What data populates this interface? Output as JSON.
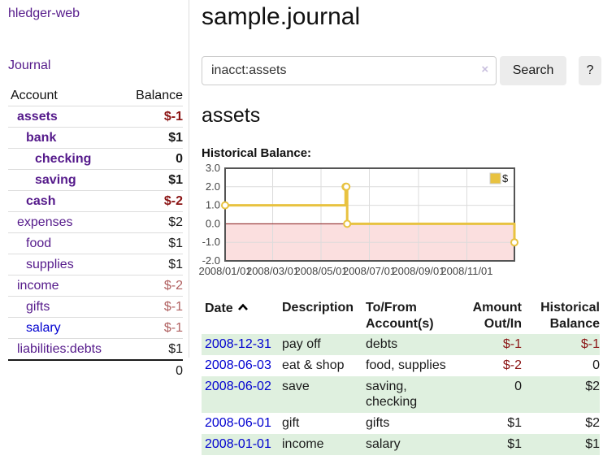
{
  "sidebar": {
    "brand": "hledger-web",
    "nav_journal": "Journal",
    "accounts": {
      "header_account": "Account",
      "header_balance": "Balance",
      "rows": [
        {
          "name": "assets",
          "balance": "$-1",
          "depth": 1,
          "bold": true,
          "neg": true,
          "blue": false
        },
        {
          "name": "bank",
          "balance": "$1",
          "depth": 2,
          "bold": true,
          "neg": false,
          "blue": false
        },
        {
          "name": "checking",
          "balance": "0",
          "depth": 3,
          "bold": true,
          "neg": false,
          "blue": false
        },
        {
          "name": "saving",
          "balance": "$1",
          "depth": 3,
          "bold": true,
          "neg": false,
          "blue": false
        },
        {
          "name": "cash",
          "balance": "$-2",
          "depth": 2,
          "bold": true,
          "neg": true,
          "blue": false
        },
        {
          "name": "expenses",
          "balance": "$2",
          "depth": 1,
          "bold": false,
          "neg": false,
          "blue": false
        },
        {
          "name": "food",
          "balance": "$1",
          "depth": 2,
          "bold": false,
          "neg": false,
          "blue": false
        },
        {
          "name": "supplies",
          "balance": "$1",
          "depth": 2,
          "bold": false,
          "neg": false,
          "blue": false
        },
        {
          "name": "income",
          "balance": "$-2",
          "depth": 1,
          "bold": false,
          "neg": true,
          "blue": false
        },
        {
          "name": "gifts",
          "balance": "$-1",
          "depth": 2,
          "bold": false,
          "neg": true,
          "blue": false
        },
        {
          "name": "salary",
          "balance": "$-1",
          "depth": 2,
          "bold": false,
          "neg": true,
          "blue": true
        },
        {
          "name": "liabilities:debts",
          "balance": "$1",
          "depth": 1,
          "bold": false,
          "neg": false,
          "blue": false
        }
      ],
      "total": "0"
    }
  },
  "main": {
    "title": "sample.journal",
    "search": {
      "value": "inacct:assets",
      "clear_icon": "×",
      "search_label": "Search",
      "help_label": "?"
    },
    "account_heading": "assets",
    "chart_heading": "Historical Balance:"
  },
  "chart_data": {
    "type": "line",
    "steps": true,
    "title": "Historical Balance:",
    "series": [
      {
        "name": "$",
        "color": "#e8c240",
        "points": [
          [
            "2008-01-01",
            1
          ],
          [
            "2008-06-01",
            2
          ],
          [
            "2008-06-02",
            2
          ],
          [
            "2008-06-03",
            0
          ],
          [
            "2008-12-31",
            -1
          ]
        ]
      }
    ],
    "xlim": [
      "2008-01-01",
      "2008-12-31"
    ],
    "ylim": [
      -2,
      3
    ],
    "yticks": [
      3.0,
      2.0,
      1.0,
      0.0,
      -1.0,
      -2.0
    ],
    "xtick_dates": [
      "2008-01-01",
      "2008-03-01",
      "2008-05-01",
      "2008-07-01",
      "2008-09-01",
      "2008-11-01"
    ],
    "xtick_labels": [
      "2008/01/01",
      "2008/03/01",
      "2008/05/01",
      "2008/07/01",
      "2008/09/01",
      "2008/11/01"
    ],
    "grid": true,
    "legend_position": "top-right",
    "negative_region_fill": "#fbdfdf",
    "zero_line_color": "#8b1a1a",
    "plot_border_color": "#545454"
  },
  "register": {
    "headers": {
      "date": "Date",
      "description": "Description",
      "accounts": "To/From Account(s)",
      "amount": "Amount Out/In",
      "balance": "Historical Balance"
    },
    "rows": [
      {
        "date": "2008-12-31",
        "description": "pay off",
        "accounts": "debts",
        "amount": "$-1",
        "balance": "$-1",
        "amount_neg": true,
        "balance_neg": true
      },
      {
        "date": "2008-06-03",
        "description": "eat & shop",
        "accounts": "food, supplies",
        "amount": "$-2",
        "balance": "0",
        "amount_neg": true,
        "balance_neg": false
      },
      {
        "date": "2008-06-02",
        "description": "save",
        "accounts": "saving,\nchecking",
        "amount": "0",
        "balance": "$2",
        "amount_neg": false,
        "balance_neg": false
      },
      {
        "date": "2008-06-01",
        "description": "gift",
        "accounts": "gifts",
        "amount": "$1",
        "balance": "$2",
        "amount_neg": false,
        "balance_neg": false
      },
      {
        "date": "2008-01-01",
        "description": "income",
        "accounts": "salary",
        "amount": "$1",
        "balance": "$1",
        "amount_neg": false,
        "balance_neg": false
      }
    ]
  }
}
